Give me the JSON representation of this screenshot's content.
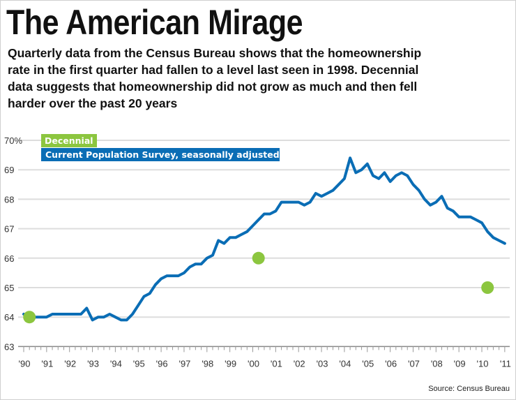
{
  "title": "The American Mirage",
  "subtitle_lines": [
    "Quarterly data from the Census Bureau shows that the homeownership",
    "rate in the first quarter had fallen to a level last seen in 1998. Decennial",
    "data suggests that homeownership did not grow as much and then fell",
    "harder over the past 20 years"
  ],
  "source": "Source: Census Bureau",
  "colors": {
    "cps": "#0a6db5",
    "decennial": "#8cc63f",
    "grid": "#dddddd"
  },
  "chart_data": {
    "type": "line",
    "ylim": [
      63,
      70
    ],
    "xlim": [
      1990,
      2011.25
    ],
    "grid": true,
    "legend_placement": "top-left",
    "y_ticks": [
      "63",
      "64",
      "65",
      "66",
      "67",
      "68",
      "69",
      "70%"
    ],
    "x_ticks": [
      "'90",
      "'91",
      "'92",
      "'93",
      "'94",
      "'95",
      "'96",
      "'97",
      "'98",
      "'99",
      "'00",
      "'01",
      "'02",
      "'03",
      "'04",
      "'05",
      "'06",
      "'07",
      "'08",
      "'09",
      "'10",
      "'11"
    ],
    "series": [
      {
        "name": "Current Population Survey, seasonally adjusted",
        "type": "line",
        "start": "1990 Q1",
        "frequency": "quarterly",
        "values": [
          64.1,
          63.9,
          64.0,
          64.0,
          64.0,
          64.1,
          64.1,
          64.1,
          64.1,
          64.1,
          64.1,
          64.3,
          63.9,
          64.0,
          64.0,
          64.1,
          64.0,
          63.9,
          63.9,
          64.1,
          64.4,
          64.7,
          64.8,
          65.1,
          65.3,
          65.4,
          65.4,
          65.4,
          65.5,
          65.7,
          65.8,
          65.8,
          66.0,
          66.1,
          66.6,
          66.5,
          66.7,
          66.7,
          66.8,
          66.9,
          67.1,
          67.3,
          67.5,
          67.5,
          67.6,
          67.9,
          67.9,
          67.9,
          67.9,
          67.8,
          67.9,
          68.2,
          68.1,
          68.2,
          68.3,
          68.5,
          68.7,
          69.4,
          68.9,
          69.0,
          69.2,
          68.8,
          68.7,
          68.9,
          68.6,
          68.8,
          68.9,
          68.8,
          68.5,
          68.3,
          68.0,
          67.8,
          67.9,
          68.1,
          67.7,
          67.6,
          67.4,
          67.4,
          67.4,
          67.3,
          67.2,
          66.9,
          66.7,
          66.6,
          66.5
        ]
      },
      {
        "name": "Decennial",
        "type": "scatter",
        "x": [
          1990,
          2000,
          2010
        ],
        "values": [
          64.0,
          66.0,
          65.0
        ]
      }
    ]
  }
}
